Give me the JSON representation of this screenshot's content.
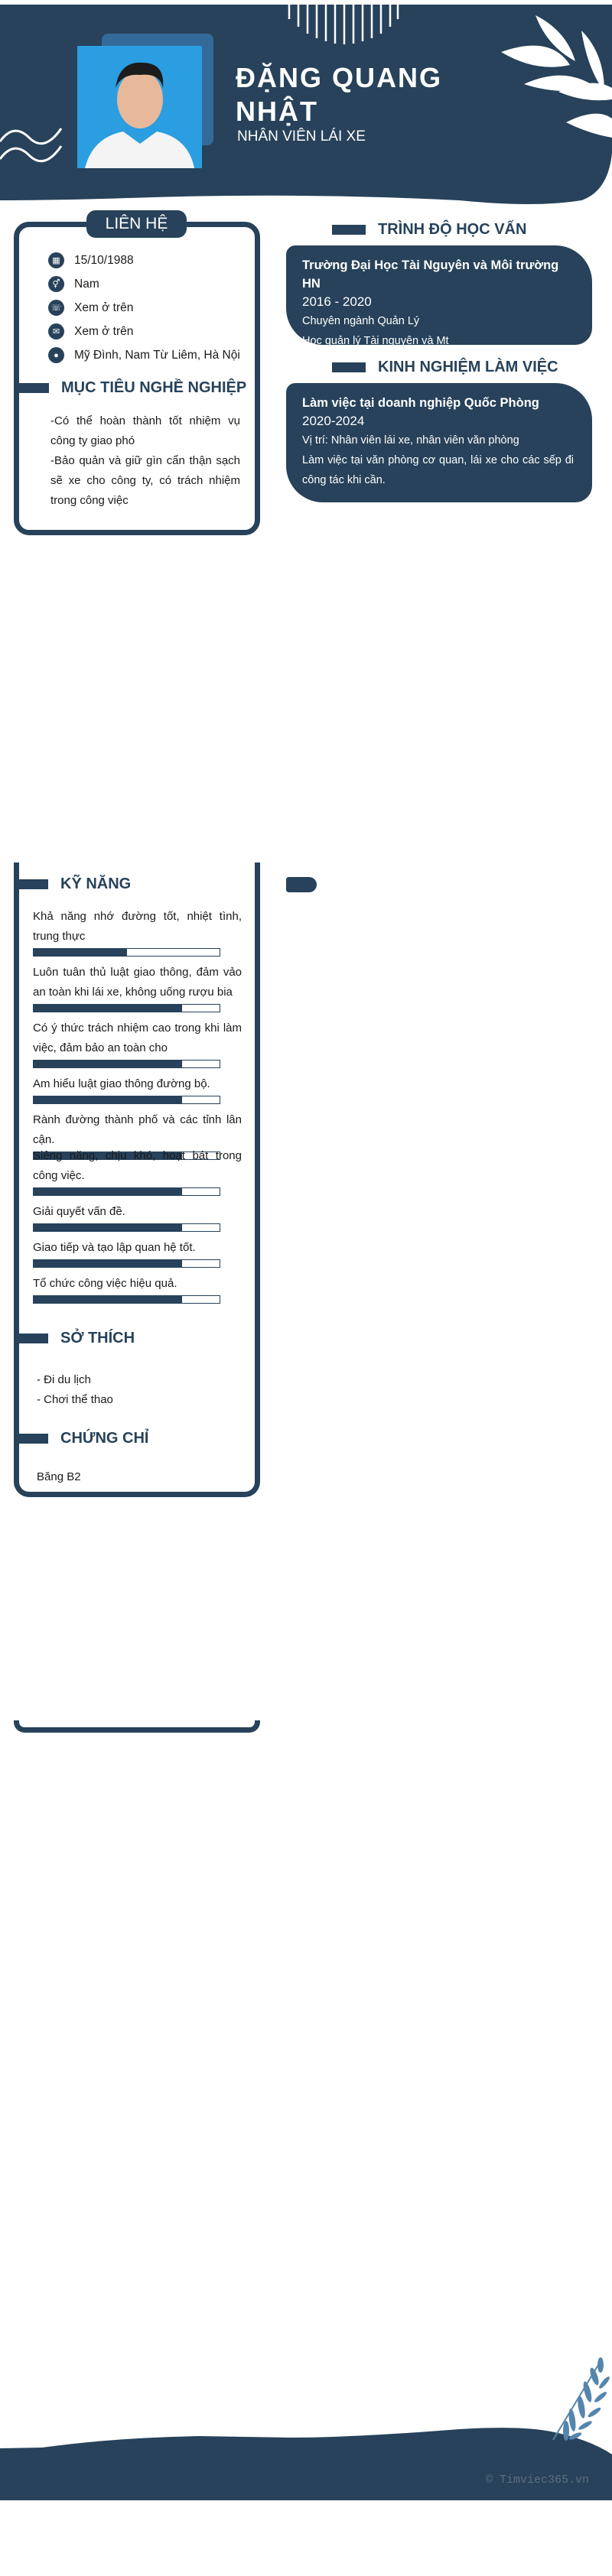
{
  "header": {
    "name_line1": "ĐẶNG QUANG",
    "name_line2": "NHẬT",
    "job_title": "NHÂN VIÊN LÁI XE"
  },
  "contact": {
    "title": "LIÊN HỆ",
    "items": [
      {
        "icon": "birthday-cake-icon",
        "text": "15/10/1988"
      },
      {
        "icon": "gender-icon",
        "text": "Nam"
      },
      {
        "icon": "phone-icon",
        "text": "Xem ở trên"
      },
      {
        "icon": "email-icon",
        "text": "Xem ở trên"
      },
      {
        "icon": "location-pin-icon",
        "text": "Mỹ Đình, Nam Từ Liêm, Hà Nội"
      }
    ]
  },
  "objective": {
    "title": "MỤC TIÊU NGHỀ NGHIỆP",
    "lines": [
      "-Có thể hoàn thành tốt nhiệm vụ công ty giao phó",
      "-Bảo quản và giữ gìn cẩn thận sạch sẽ xe cho công ty, có trách nhiệm trong công việc"
    ]
  },
  "education": {
    "title": "TRÌNH ĐỘ HỌC VẤN",
    "school": "Trường Đại Học Tài Nguyên và Môi trường HN",
    "years": "2016 - 2020",
    "major": "Chuyên ngành Quản Lý",
    "desc": "Học quản lý Tài nguyên và Mt"
  },
  "experience": {
    "title": "KINH NGHIỆM LÀM VIỆC",
    "company": "Làm việc tại doanh nghiệp Quốc Phòng",
    "years": "2020-2024",
    "position": "Vị trí: Nhân viên lái xe, nhân viên văn phòng",
    "desc": "Làm việc tại văn phòng cơ quan, lái xe cho các sếp đi công tác khi cần."
  },
  "skills": {
    "title": "KỸ NĂNG",
    "items": [
      {
        "label": "Khả năng nhớ đường tốt, nhiệt tình, trung thực",
        "level": 50
      },
      {
        "label": "Luôn tuân thủ luật giao thông, đảm vảo an toàn khi lái xe, không uống rượu bia",
        "level": 80
      },
      {
        "label": "Có ý thức trách nhiệm cao trong khi làm việc, đảm bảo an toàn cho",
        "level": 80
      },
      {
        "label": "Am hiểu luật giao thông đường bộ.",
        "level": 80
      },
      {
        "label": "Rành đường thành phố và các tỉnh lân cận.",
        "level": 80
      },
      {
        "label": "Siêng năng, chịu khó, hoạt bát trong công việc.",
        "level": 80
      },
      {
        "label": "Giải quyết vấn đề.",
        "level": 80
      },
      {
        "label": "Giao tiếp và tạo lập quan hệ tốt.",
        "level": 80
      },
      {
        "label": "Tổ chức công việc hiệu quả.",
        "level": 80
      }
    ]
  },
  "hobbies": {
    "title": "SỞ THÍCH",
    "items": [
      "- Đi du lịch",
      "- Chơi thể thao"
    ]
  },
  "certificates": {
    "title": "CHỨNG CHỈ",
    "items": [
      "Băng B2"
    ]
  },
  "footer": {
    "watermark": "© Timviec365.vn"
  },
  "colors": {
    "primary": "#27425a",
    "accent": "#346a99",
    "leaf": "#5585ad"
  }
}
